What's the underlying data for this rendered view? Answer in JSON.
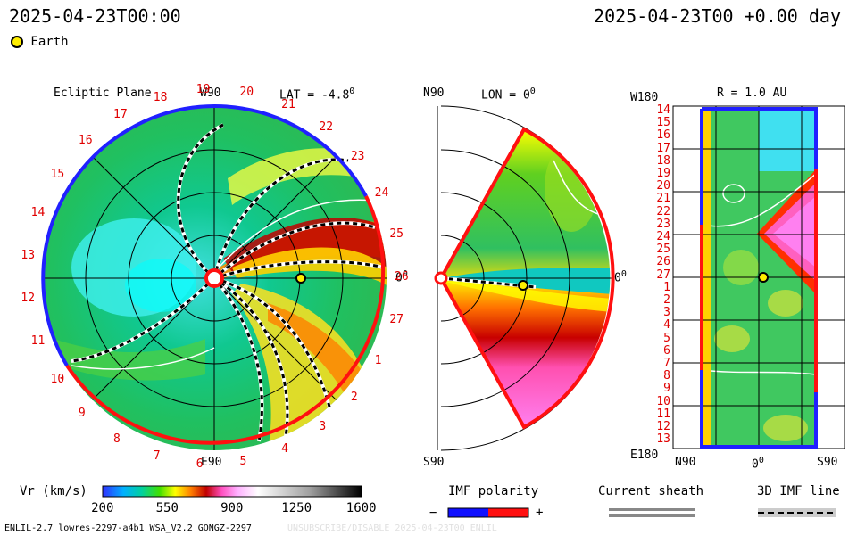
{
  "header": {
    "left_time": "2025-04-23T00:00",
    "right_time": "2025-04-23T00 +0.00 day",
    "earth_label": "Earth"
  },
  "ecliptic": {
    "title": "Ecliptic Plane",
    "lat_label": "LAT = -4.8",
    "deg_mark": "0",
    "top_label": "W90",
    "bottom_label": "E90",
    "right_label": "0",
    "rotations": [
      "20",
      "21",
      "22",
      "23",
      "24",
      "25",
      "26",
      "27",
      "1",
      "2",
      "3",
      "4",
      "5",
      "6",
      "7",
      "8",
      "9",
      "10",
      "11",
      "12",
      "13",
      "14",
      "15",
      "16",
      "17",
      "18",
      "19"
    ]
  },
  "meridional": {
    "top_label": "N90",
    "title": "LON = 0",
    "deg_mark": "0",
    "bottom_label": "S90",
    "right_label": "0"
  },
  "radial": {
    "title": "R = 1.0 AU",
    "top_left": "W180",
    "bottom_left": "E180",
    "x_left": "N90",
    "x_mid": "0",
    "x_right": "S90",
    "rows": [
      "14",
      "15",
      "16",
      "17",
      "18",
      "19",
      "20",
      "21",
      "22",
      "23",
      "24",
      "25",
      "26",
      "27",
      "1",
      "2",
      "3",
      "4",
      "5",
      "6",
      "7",
      "8",
      "9",
      "10",
      "11",
      "12",
      "13"
    ]
  },
  "colorbar": {
    "label": "Vr (km/s)",
    "ticks": [
      "200",
      "550",
      "900",
      "1250",
      "1600"
    ],
    "colors": [
      "#2020ff",
      "#00a0ff",
      "#00e0e0",
      "#00d080",
      "#40e000",
      "#c0ff00",
      "#ffff00",
      "#ffa000",
      "#ff3000",
      "#c00000",
      "#ff40c0",
      "#ff80ff",
      "#ffffff",
      "#c0c0c0",
      "#808080",
      "#404040",
      "#000000"
    ]
  },
  "legend": {
    "imf_title": "IMF polarity",
    "minus": "−",
    "plus": "+",
    "sheath_title": "Current sheath",
    "imf_line_title": "3D IMF line"
  },
  "footer": {
    "left": "ENLIL-2.7 lowres-2297-a4b1 WSA_V2.2 GONGZ-2297",
    "right": "UNSUBSCRIBE/DISABLE  2025-04-23T00  ENLIL"
  }
}
